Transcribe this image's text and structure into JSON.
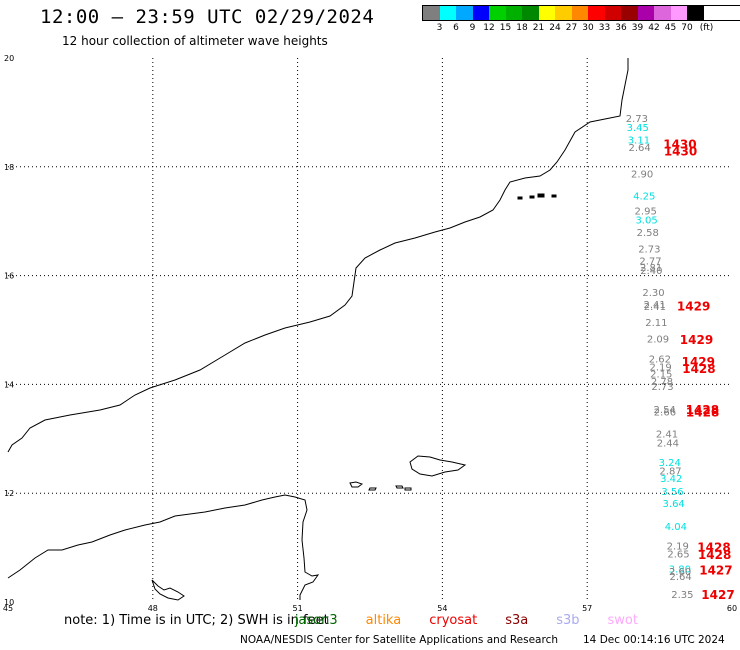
{
  "header": {
    "title": "12:00 – 23:59 UTC 02/29/2024",
    "subtitle": "12 hour collection of altimeter wave heights"
  },
  "legend": {
    "unit": "(ft)",
    "bins": [
      {
        "label": "3",
        "color": "#7f7f7f"
      },
      {
        "label": "6",
        "color": "#00ffff"
      },
      {
        "label": "9",
        "color": "#00a8ff"
      },
      {
        "label": "12",
        "color": "#0000ff"
      },
      {
        "label": "15",
        "color": "#00d000"
      },
      {
        "label": "18",
        "color": "#00b000"
      },
      {
        "label": "21",
        "color": "#008800"
      },
      {
        "label": "24",
        "color": "#ffff00"
      },
      {
        "label": "27",
        "color": "#ffcc00"
      },
      {
        "label": "30",
        "color": "#ff8800"
      },
      {
        "label": "33",
        "color": "#ff0000"
      },
      {
        "label": "36",
        "color": "#d00000"
      },
      {
        "label": "39",
        "color": "#990000"
      },
      {
        "label": "42",
        "color": "#aa00aa"
      },
      {
        "label": "45",
        "color": "#dd66dd"
      },
      {
        "label": "70",
        "color": "#ff99ff"
      },
      {
        "label": "",
        "color": "#000000"
      }
    ]
  },
  "map": {
    "lon_ticks": [
      "45",
      "48",
      "51",
      "54",
      "57",
      "60"
    ],
    "lat_ticks": [
      "20",
      "18",
      "16",
      "14",
      "12",
      "10"
    ],
    "lon_range": [
      45,
      60
    ],
    "lat_range": [
      10,
      20
    ],
    "observations": [
      {
        "lat": 18.9,
        "value": "2.73",
        "color": "#7f7f7f"
      },
      {
        "lat": 18.73,
        "value": "3.45",
        "color": "#00e0e0"
      },
      {
        "lat": 18.5,
        "value": "3.11",
        "color": "#00e0e0"
      },
      {
        "lat": 18.36,
        "value": "2.64",
        "color": "#7f7f7f"
      },
      {
        "lat": 17.88,
        "value": "2.90",
        "color": "#7f7f7f"
      },
      {
        "lat": 17.47,
        "value": "4.25",
        "color": "#00e0e0"
      },
      {
        "lat": 17.2,
        "value": "2.95",
        "color": "#7f7f7f"
      },
      {
        "lat": 17.03,
        "value": "3.05",
        "color": "#00e0e0"
      },
      {
        "lat": 16.8,
        "value": "2.58",
        "color": "#7f7f7f"
      },
      {
        "lat": 16.5,
        "value": "2.73",
        "color": "#7f7f7f"
      },
      {
        "lat": 16.28,
        "value": "2.77",
        "color": "#7f7f7f"
      },
      {
        "lat": 16.16,
        "value": "2.81",
        "color": "#7f7f7f"
      },
      {
        "lat": 16.1,
        "value": "2.40",
        "color": "#7f7f7f"
      },
      {
        "lat": 15.7,
        "value": "2.30",
        "color": "#7f7f7f"
      },
      {
        "lat": 15.48,
        "value": "2.41",
        "color": "#7f7f7f"
      },
      {
        "lat": 15.44,
        "value": "2.41",
        "color": "#7f7f7f"
      },
      {
        "lat": 15.15,
        "value": "2.11",
        "color": "#7f7f7f"
      },
      {
        "lat": 14.84,
        "value": "2.09",
        "color": "#7f7f7f"
      },
      {
        "lat": 14.48,
        "value": "2.62",
        "color": "#7f7f7f"
      },
      {
        "lat": 14.33,
        "value": "2.19",
        "color": "#7f7f7f"
      },
      {
        "lat": 14.2,
        "value": "2.15",
        "color": "#7f7f7f"
      },
      {
        "lat": 14.06,
        "value": "2.78",
        "color": "#7f7f7f"
      },
      {
        "lat": 13.97,
        "value": "2.73",
        "color": "#7f7f7f"
      },
      {
        "lat": 13.55,
        "value": "2.54",
        "color": "#7f7f7f"
      },
      {
        "lat": 13.5,
        "value": "2.66",
        "color": "#7f7f7f"
      },
      {
        "lat": 13.1,
        "value": "2.41",
        "color": "#7f7f7f"
      },
      {
        "lat": 12.93,
        "value": "2.44",
        "color": "#7f7f7f"
      },
      {
        "lat": 12.57,
        "value": "3.24",
        "color": "#00e0e0"
      },
      {
        "lat": 12.42,
        "value": "2.87",
        "color": "#7f7f7f"
      },
      {
        "lat": 12.28,
        "value": "3.42",
        "color": "#00e0e0"
      },
      {
        "lat": 12.04,
        "value": "3.56",
        "color": "#00e0e0"
      },
      {
        "lat": 11.82,
        "value": "3.64",
        "color": "#00e0e0"
      },
      {
        "lat": 11.4,
        "value": "4.04",
        "color": "#00e0e0"
      },
      {
        "lat": 11.04,
        "value": "2.19",
        "color": "#7f7f7f"
      },
      {
        "lat": 10.89,
        "value": "2.65",
        "color": "#7f7f7f"
      },
      {
        "lat": 10.62,
        "value": "3.80",
        "color": "#00e0e0"
      },
      {
        "lat": 10.57,
        "value": "2.60",
        "color": "#7f7f7f"
      },
      {
        "lat": 10.48,
        "value": "2.64",
        "color": "#7f7f7f"
      },
      {
        "lat": 10.15,
        "value": "2.35",
        "color": "#7f7f7f"
      }
    ],
    "time_labels": [
      {
        "lat": 18.43,
        "value": "1430"
      },
      {
        "lat": 18.3,
        "value": "1430"
      },
      {
        "lat": 15.45,
        "value": "1429"
      },
      {
        "lat": 14.83,
        "value": "1429"
      },
      {
        "lat": 14.43,
        "value": "1429"
      },
      {
        "lat": 14.3,
        "value": "1428"
      },
      {
        "lat": 13.55,
        "value": "1428"
      },
      {
        "lat": 13.5,
        "value": "1428"
      },
      {
        "lat": 11.02,
        "value": "1428"
      },
      {
        "lat": 10.88,
        "value": "1428"
      },
      {
        "lat": 10.6,
        "value": "1427"
      },
      {
        "lat": 10.15,
        "value": "1427"
      }
    ]
  },
  "note": {
    "prefix": "note: 1) Time is in UTC; 2) SWH is in feet",
    "satellites": [
      {
        "name": "jason3",
        "color": "#006600"
      },
      {
        "name": "altika",
        "color": "#ff8800"
      },
      {
        "name": "cryosat",
        "color": "#ee0000"
      },
      {
        "name": "s3a",
        "color": "#880000"
      },
      {
        "name": "s3b",
        "color": "#aaaaee"
      },
      {
        "name": "swot",
        "color": "#ffaaff"
      }
    ]
  },
  "footer": {
    "credit": "NOAA/NESDIS Center for Satellite Applications and Research",
    "generated": "14 Dec 00:14:16 UTC 2024"
  }
}
